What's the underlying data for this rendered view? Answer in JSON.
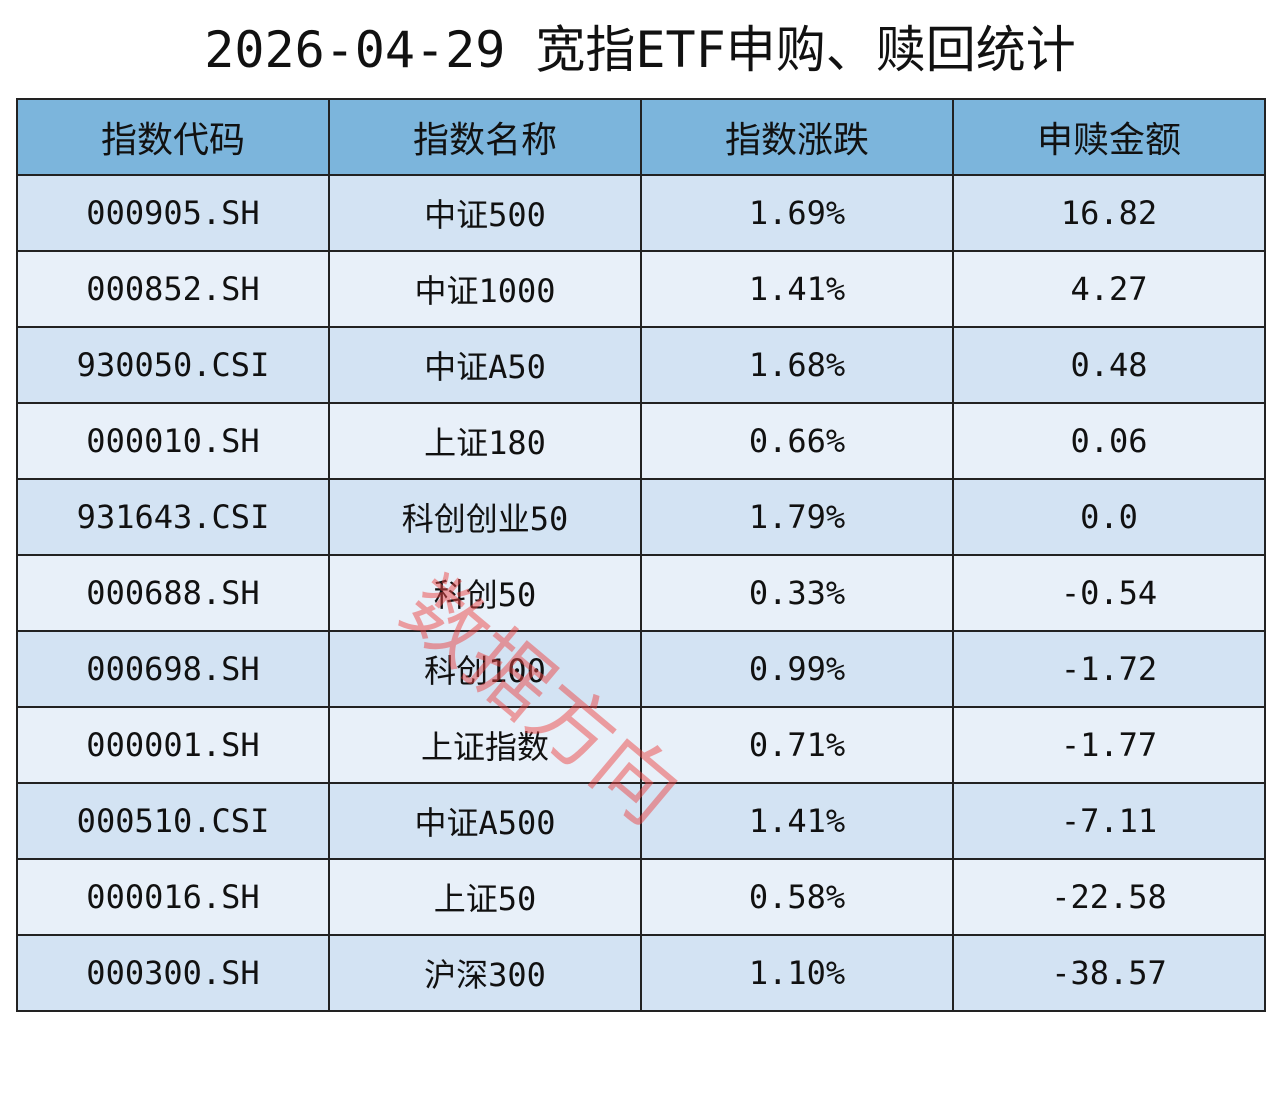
{
  "header": {
    "title": "2026-04-29 宽指ETF申购、赎回统计"
  },
  "table": {
    "columns": [
      "指数代码",
      "指数名称",
      "指数涨跌",
      "申赎金额"
    ],
    "rows": [
      [
        "000905.SH",
        "中证500",
        "1.69%",
        "16.82"
      ],
      [
        "000852.SH",
        "中证1000",
        "1.41%",
        "4.27"
      ],
      [
        "930050.CSI",
        "中证A50",
        "1.68%",
        "0.48"
      ],
      [
        "000010.SH",
        "上证180",
        "0.66%",
        "0.06"
      ],
      [
        "931643.CSI",
        "科创创业50",
        "1.79%",
        "0.0"
      ],
      [
        "000688.SH",
        "科创50",
        "0.33%",
        "-0.54"
      ],
      [
        "000698.SH",
        "科创100",
        "0.99%",
        "-1.72"
      ],
      [
        "000001.SH",
        "上证指数",
        "0.71%",
        "-1.77"
      ],
      [
        "000510.CSI",
        "中证A500",
        "1.41%",
        "-7.11"
      ],
      [
        "000016.SH",
        "上证50",
        "0.58%",
        "-22.58"
      ],
      [
        "000300.SH",
        "沪深300",
        "1.10%",
        "-38.57"
      ]
    ]
  },
  "watermark": "数据方向"
}
